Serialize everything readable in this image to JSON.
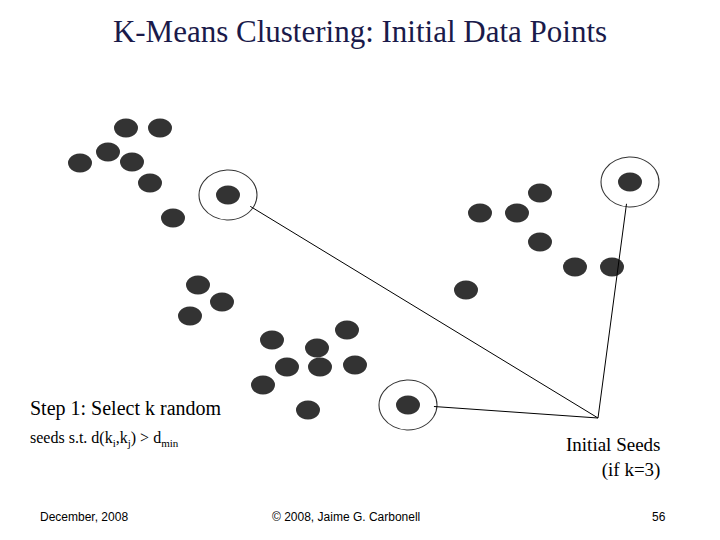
{
  "title": "K-Means Clustering: Initial Data Points",
  "step_text": [
    [
      {
        "text": "Step 1: Select k random"
      }
    ],
    [
      {
        "text": "seeds s.t. d(k"
      },
      {
        "text": "i",
        "sub": true
      },
      {
        "text": ",k"
      },
      {
        "text": "j",
        "sub": true
      },
      {
        "text": ") > d"
      },
      {
        "text": "min",
        "sub": true
      }
    ]
  ],
  "annotation": [
    "Initial Seeds",
    "(if k=3)"
  ],
  "footer": {
    "left": "December, 2008",
    "center": "© 2008, Jaime G. Carbonell",
    "right": "56"
  },
  "chart_data": {
    "type": "scatter",
    "xlim": [
      0,
      720
    ],
    "ylim": [
      0,
      540
    ],
    "tick_labels": false,
    "grid": false,
    "series": [
      {
        "color": "#000000",
        "marker": "circle",
        "x": [
          126,
          160,
          108,
          80,
          132,
          150,
          173,
          198,
          222,
          190,
          272,
          347,
          317,
          287,
          320,
          355,
          263,
          308,
          480,
          540,
          517,
          540,
          575,
          612,
          466
        ],
        "y": [
          412,
          412,
          388,
          377,
          378,
          357,
          322,
          255,
          238,
          224,
          200,
          210,
          192,
          173,
          173,
          175,
          155,
          130,
          327,
          347,
          327,
          298,
          273,
          273,
          250
        ]
      },
      {
        "color": "#000000",
        "marker": "ringed",
        "x": [
          228,
          408,
          630
        ],
        "y": [
          345,
          135,
          358
        ]
      }
    ]
  }
}
